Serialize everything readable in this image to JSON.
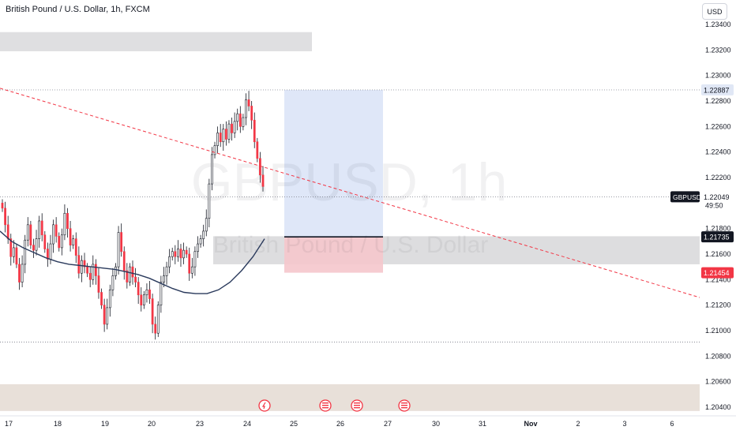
{
  "header": {
    "title": "British Pound / U.S. Dollar, 1h, FXCM",
    "currency": "USD"
  },
  "watermark": {
    "symbol": "GBPUSD, 1h",
    "name": "British Pound / U.S. Dollar"
  },
  "colors": {
    "up": "#ffffff",
    "down": "#f23645",
    "wick": "#131722",
    "ma": "#2a3a5c",
    "trendline": "#f23645",
    "target_zone": "#dbe4f7",
    "stop_zone": "#f5c6cc",
    "gray_zone": "#d9d9dc",
    "tan_zone": "#e6ddd5"
  },
  "chart_data": {
    "type": "candlestick",
    "x_ticks": [
      "17",
      "18",
      "19",
      "20",
      "23",
      "24",
      "25",
      "26",
      "27",
      "30",
      "31",
      "Nov",
      "2",
      "3",
      "6"
    ],
    "y_ticks": [
      "1.23400",
      "1.23200",
      "1.23000",
      "1.22800",
      "1.22600",
      "1.22400",
      "1.22200",
      "1.22000",
      "1.21800",
      "1.21600",
      "1.21400",
      "1.21200",
      "1.21000",
      "1.20800",
      "1.20600",
      "1.20400"
    ],
    "y_range": [
      1.2036,
      1.2355
    ],
    "closes": [
      1.2196,
      1.2183,
      1.2172,
      1.2158,
      1.2165,
      1.2152,
      1.2138,
      1.2152,
      1.2171,
      1.2183,
      1.2167,
      1.2163,
      1.2172,
      1.2186,
      1.2175,
      1.2164,
      1.2156,
      1.2168,
      1.2183,
      1.2174,
      1.2165,
      1.2175,
      1.2192,
      1.218,
      1.2167,
      1.2172,
      1.2159,
      1.2145,
      1.2155,
      1.215,
      1.2145,
      1.214,
      1.2152,
      1.2143,
      1.213,
      1.212,
      1.2105,
      1.2118,
      1.2132,
      1.2143,
      1.215,
      1.2177,
      1.2162,
      1.2147,
      1.2138,
      1.215,
      1.2142,
      1.2138,
      1.2128,
      1.212,
      1.2128,
      1.2132,
      1.2125,
      1.2105,
      1.2098,
      1.212,
      1.2138,
      1.2143,
      1.215,
      1.2158,
      1.2162,
      1.2158,
      1.2164,
      1.2157,
      1.2163,
      1.216,
      1.2145,
      1.215,
      1.2162,
      1.2168,
      1.2172,
      1.2178,
      1.2188,
      1.2215,
      1.2238,
      1.2245,
      1.2255,
      1.2248,
      1.2258,
      1.225,
      1.2262,
      1.2255,
      1.2264,
      1.227,
      1.226,
      1.2267,
      1.2281,
      1.2276,
      1.2265,
      1.2248,
      1.2235,
      1.2222,
      1.2213
    ],
    "moving_average": [
      1.2178,
      1.217,
      1.2165,
      1.2161,
      1.2157,
      1.2154,
      1.2152,
      1.2151,
      1.215,
      1.2149,
      1.2148,
      1.2146,
      1.2144,
      1.2141,
      1.2137,
      1.2133,
      1.213,
      1.2129,
      1.2129,
      1.2132,
      1.2138,
      1.2147,
      1.2158,
      1.2172
    ],
    "trendline": {
      "from": [
        "start",
        1.229
      ],
      "to": [
        "end",
        1.2126
      ]
    },
    "current_price": "1.22049",
    "countdown": "49:50",
    "symbol_label": "GBPUSD",
    "position": {
      "type": "long",
      "entry": 1.21735,
      "target": 1.22887,
      "stop": 1.21454,
      "entry_label": "1.21735",
      "target_label": "1.22887",
      "stop_label": "1.21454"
    },
    "zones": [
      {
        "name": "resistance",
        "low": 1.2319,
        "high": 1.2334
      },
      {
        "name": "mid",
        "low": 1.2152,
        "high": 1.2174
      },
      {
        "name": "support",
        "low": 1.2037,
        "high": 1.2058
      }
    ],
    "low_line": 1.2091,
    "events": [
      "flag-event",
      "us-flag",
      "us-flag",
      "us-flag"
    ]
  }
}
